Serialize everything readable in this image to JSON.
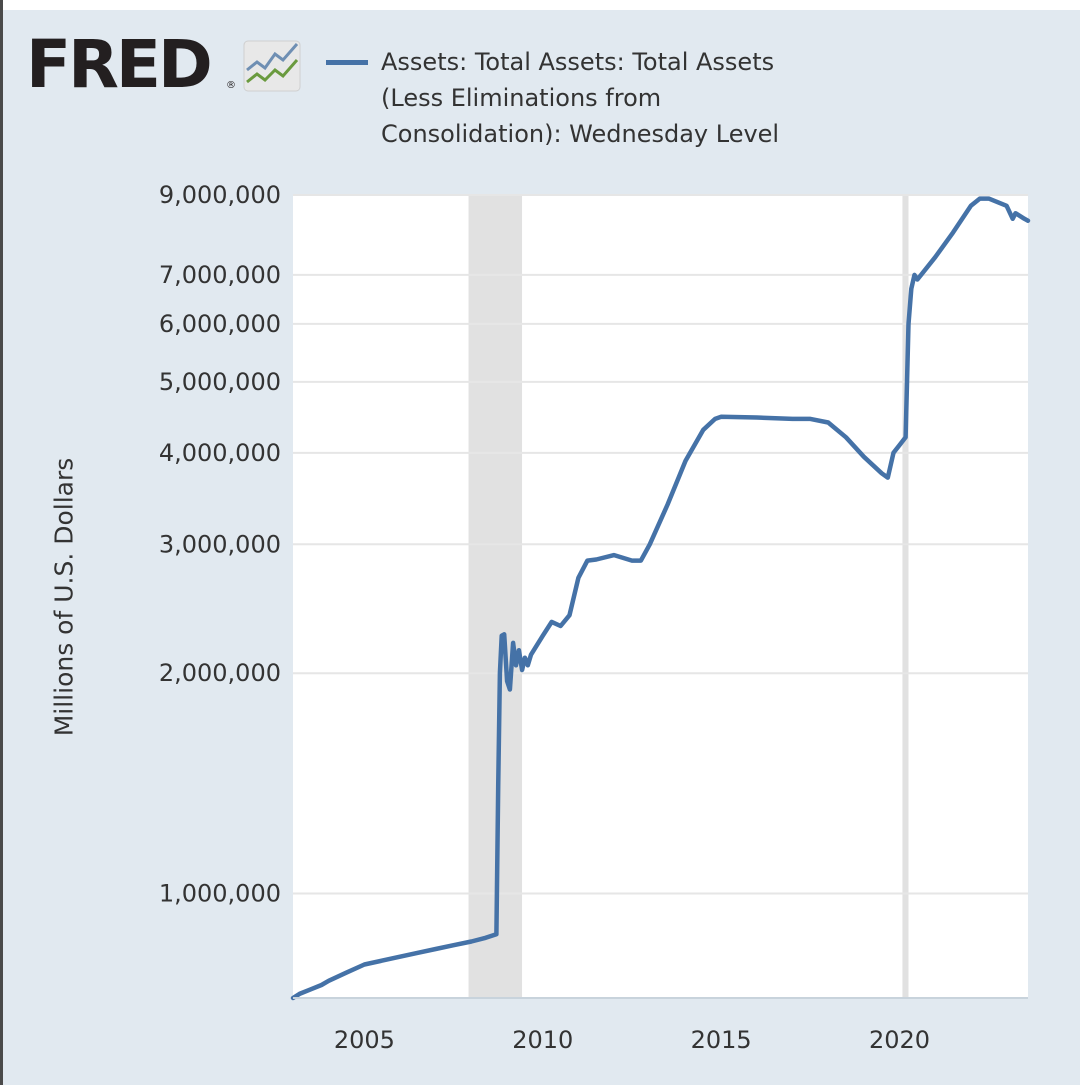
{
  "header": {
    "logo_text": "FRED",
    "logo_mark": "®",
    "logo_icon": "chart-line-icon",
    "legend": {
      "color": "#4572a7",
      "lines": [
        "Assets: Total Assets: Total Assets",
        "(Less Eliminations from",
        "Consolidation): Wednesday Level"
      ]
    }
  },
  "chart_data": {
    "type": "line",
    "ylabel": "Millions of U.S. Dollars",
    "xlabel": "",
    "y_scale": "log",
    "ylim": [
      720000,
      9000000
    ],
    "xlim": [
      2003.0,
      2023.6
    ],
    "grid": true,
    "legend_position": "top",
    "series_color": "#4572a7",
    "recession_color": "#e1e1e1",
    "x_ticks": [
      2005,
      2010,
      2015,
      2020
    ],
    "x_tick_labels": [
      "2005",
      "2010",
      "2015",
      "2020"
    ],
    "y_ticks": [
      1000000,
      2000000,
      3000000,
      4000000,
      5000000,
      6000000,
      7000000,
      9000000
    ],
    "y_tick_labels": [
      "1,000,000",
      "2,000,000",
      "3,000,000",
      "4,000,000",
      "5,000,000",
      "6,000,000",
      "7,000,000",
      "9,000,000"
    ],
    "recessions": [
      {
        "start": 2007.92,
        "end": 2009.42
      },
      {
        "start": 2020.08,
        "end": 2020.25
      }
    ],
    "series": [
      {
        "x": [
          2003.0,
          2003.2,
          2003.5,
          2003.8,
          2004.0,
          2004.5,
          2005.0,
          2005.5,
          2006.0,
          2006.5,
          2007.0,
          2007.5,
          2008.0,
          2008.4,
          2008.7,
          2008.75,
          2008.8,
          2008.85,
          2008.92,
          2009.0,
          2009.08,
          2009.17,
          2009.25,
          2009.33,
          2009.42,
          2009.5,
          2009.58,
          2009.67,
          2009.75,
          2010.0,
          2010.25,
          2010.5,
          2010.75,
          2011.0,
          2011.25,
          2011.5,
          2012.0,
          2012.5,
          2012.75,
          2013.0,
          2013.5,
          2014.0,
          2014.5,
          2014.83,
          2015.0,
          2016.0,
          2017.0,
          2017.5,
          2018.0,
          2018.5,
          2019.0,
          2019.5,
          2019.67,
          2019.83,
          2020.0,
          2020.17,
          2020.25,
          2020.33,
          2020.42,
          2020.5,
          2021.0,
          2021.5,
          2022.0,
          2022.25,
          2022.5,
          2023.0,
          2023.17,
          2023.25,
          2023.5,
          2023.6
        ],
        "y": [
          720000,
          730000,
          740000,
          750000,
          760000,
          780000,
          800000,
          810000,
          820000,
          830000,
          840000,
          850000,
          860000,
          870000,
          880000,
          1400000,
          2000000,
          2250000,
          2260000,
          1950000,
          1900000,
          2200000,
          2050000,
          2150000,
          2020000,
          2100000,
          2050000,
          2120000,
          2150000,
          2250000,
          2350000,
          2320000,
          2400000,
          2700000,
          2850000,
          2860000,
          2900000,
          2850000,
          2850000,
          3000000,
          3400000,
          3900000,
          4300000,
          4450000,
          4480000,
          4470000,
          4450000,
          4450000,
          4400000,
          4200000,
          3950000,
          3750000,
          3700000,
          4000000,
          4100000,
          4200000,
          6000000,
          6700000,
          7000000,
          6900000,
          7400000,
          8000000,
          8700000,
          8900000,
          8900000,
          8700000,
          8350000,
          8500000,
          8350000,
          8300000
        ]
      }
    ]
  }
}
